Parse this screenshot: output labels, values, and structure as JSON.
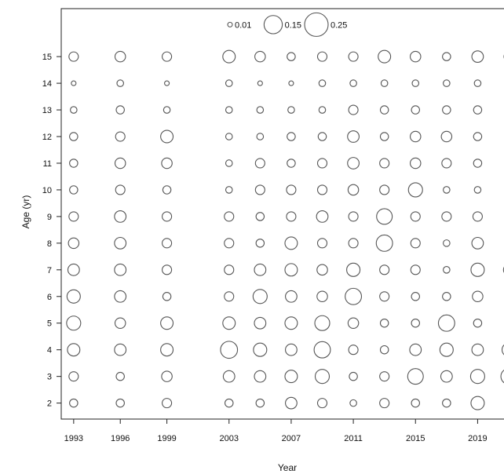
{
  "chart_data": {
    "type": "scatter",
    "title": "",
    "xlabel": "Year",
    "ylabel": "Age (yr)",
    "xlim": [
      1992.2,
      2021
    ],
    "ylim": [
      1.4,
      16.8
    ],
    "x_ticks": [
      1993,
      1996,
      1999,
      2003,
      2007,
      2011,
      2015,
      2019
    ],
    "y_ticks": [
      2,
      3,
      4,
      5,
      6,
      7,
      8,
      9,
      10,
      11,
      12,
      13,
      14,
      15
    ],
    "legend": {
      "placement": "top-center",
      "entries": [
        {
          "label": "0.01",
          "value": 0.01
        },
        {
          "label": "0.15",
          "value": 0.15
        },
        {
          "label": "0.25",
          "value": 0.25
        }
      ]
    },
    "bubble_color": "#555555",
    "x": [
      1993,
      1996,
      1999,
      2003,
      2005,
      2007,
      2009,
      2011,
      2013,
      2015,
      2017,
      2019,
      2021
    ],
    "ages": [
      2,
      3,
      4,
      5,
      6,
      7,
      8,
      9,
      10,
      11,
      12,
      13,
      14,
      15
    ],
    "values": [
      [
        0.03,
        0.04,
        0.07,
        0.09,
        0.08,
        0.06,
        0.05,
        0.04,
        0.03,
        0.03,
        0.03,
        0.02,
        0.01,
        0.04
      ],
      [
        0.03,
        0.03,
        0.06,
        0.05,
        0.06,
        0.06,
        0.06,
        0.06,
        0.04,
        0.05,
        0.04,
        0.03,
        0.02,
        0.05
      ],
      [
        0.04,
        0.05,
        0.07,
        0.07,
        0.03,
        0.04,
        0.04,
        0.04,
        0.03,
        0.05,
        0.07,
        0.02,
        0.01,
        0.04
      ],
      [
        0.03,
        0.06,
        0.13,
        0.07,
        0.04,
        0.04,
        0.04,
        0.04,
        0.02,
        0.02,
        0.02,
        0.02,
        0.02,
        0.07
      ],
      [
        0.03,
        0.06,
        0.08,
        0.06,
        0.09,
        0.06,
        0.03,
        0.03,
        0.04,
        0.04,
        0.02,
        0.02,
        0.01,
        0.05
      ],
      [
        0.06,
        0.07,
        0.06,
        0.07,
        0.06,
        0.07,
        0.07,
        0.04,
        0.04,
        0.03,
        0.03,
        0.02,
        0.01,
        0.03
      ],
      [
        0.04,
        0.09,
        0.12,
        0.1,
        0.05,
        0.05,
        0.04,
        0.06,
        0.04,
        0.04,
        0.03,
        0.02,
        0.02,
        0.04
      ],
      [
        0.02,
        0.03,
        0.04,
        0.05,
        0.12,
        0.08,
        0.04,
        0.04,
        0.05,
        0.06,
        0.06,
        0.04,
        0.02,
        0.04
      ],
      [
        0.04,
        0.04,
        0.03,
        0.03,
        0.04,
        0.04,
        0.12,
        0.11,
        0.04,
        0.04,
        0.03,
        0.03,
        0.02,
        0.07
      ],
      [
        0.03,
        0.11,
        0.06,
        0.03,
        0.03,
        0.04,
        0.04,
        0.04,
        0.09,
        0.05,
        0.05,
        0.03,
        0.02,
        0.05
      ],
      [
        0.03,
        0.06,
        0.08,
        0.12,
        0.03,
        0.02,
        0.02,
        0.04,
        0.02,
        0.04,
        0.05,
        0.03,
        0.02,
        0.03
      ],
      [
        0.08,
        0.09,
        0.06,
        0.03,
        0.05,
        0.08,
        0.06,
        0.04,
        0.02,
        0.03,
        0.03,
        0.03,
        0.02,
        0.06
      ],
      [
        0.03,
        0.11,
        0.08,
        0.03,
        0.03,
        0.05,
        0.03,
        0.03,
        0.02,
        0.02,
        0.02,
        0.02,
        0.02,
        0.04
      ]
    ]
  }
}
